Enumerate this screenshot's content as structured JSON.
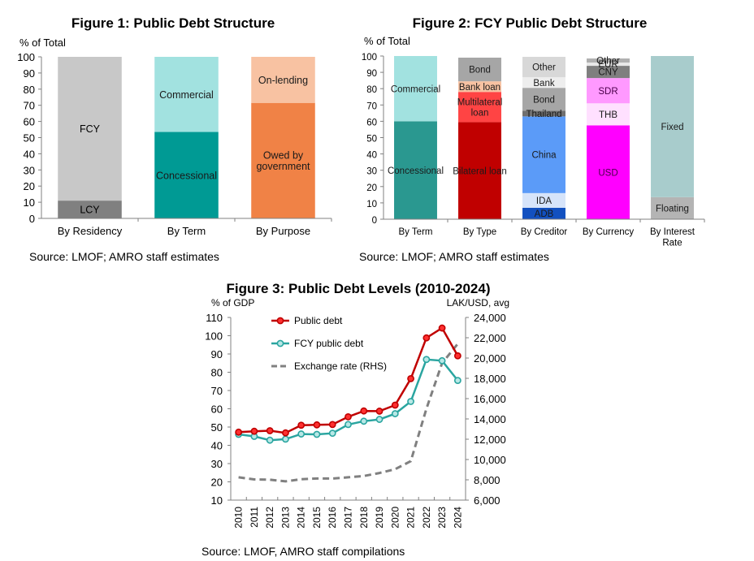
{
  "chart_data": [
    {
      "type": "bar",
      "stacked": true,
      "title": "Figure 1: Public Debt Structure",
      "ylabel": "% of Total",
      "ylim": [
        0,
        100
      ],
      "yticks": [
        "0",
        "10",
        "20",
        "30",
        "40",
        "50",
        "60",
        "70",
        "80",
        "90",
        "100"
      ],
      "source": "Source: LMOF; AMRO staff estimates",
      "bars": [
        {
          "category": "By Residency",
          "segments": [
            {
              "label": "LCY",
              "value": 11,
              "color": "#808080",
              "text_color": "#000000"
            },
            {
              "label": "FCY",
              "value": 89,
              "color": "#c8c8c8",
              "text_color": "#000000"
            }
          ]
        },
        {
          "category": "By Term",
          "segments": [
            {
              "label": "Concessional",
              "value": 53.5,
              "color": "#009a94",
              "text_color": "#1a1a1a"
            },
            {
              "label": "Commercial",
              "value": 46.5,
              "color": "#a2e2e0",
              "text_color": "#1a1a1a"
            }
          ]
        },
        {
          "category": "By Purpose",
          "segments": [
            {
              "label": "Owed by government",
              "lines": [
                "Owed by",
                "government"
              ],
              "value": 71.5,
              "color": "#f08246",
              "text_color": "#1a1a1a"
            },
            {
              "label": "On-lending",
              "value": 28.5,
              "color": "#f8c2a2",
              "text_color": "#1a1a1a"
            }
          ]
        }
      ]
    },
    {
      "type": "bar",
      "stacked": true,
      "title": "Figure 2: FCY Public Debt Structure",
      "ylabel": "% of Total",
      "ylim": [
        0,
        100
      ],
      "yticks": [
        "0",
        "10",
        "20",
        "30",
        "40",
        "50",
        "60",
        "70",
        "80",
        "90",
        "100"
      ],
      "source": "Source: LMOF; AMRO staff estimates",
      "bars": [
        {
          "category": "By Term",
          "segments": [
            {
              "label": "Concessional",
              "value": 60,
              "color": "#2a9890",
              "text_color": "#1a1a1a"
            },
            {
              "label": "Commercial",
              "value": 40,
              "color": "#a2e2e0",
              "text_color": "#1a1a1a"
            }
          ]
        },
        {
          "category": "By Type",
          "segments": [
            {
              "label": "Bilateral loan",
              "value": 59.5,
              "color": "#c00000",
              "text_color": "#1a1a1a"
            },
            {
              "label": "Multilateral loan",
              "lines": [
                "Multilateral",
                "loan"
              ],
              "value": 18.5,
              "color": "#ff4444",
              "text_color": "#1a1a1a"
            },
            {
              "label": "Bank loan",
              "value": 6.5,
              "color": "#f8c2a2",
              "text_color": "#1a1a1a"
            },
            {
              "label": "Bond",
              "value": 14.5,
              "color": "#a6a6a6",
              "text_color": "#1a1a1a"
            }
          ]
        },
        {
          "category": "By Creditor",
          "segments": [
            {
              "label": "ADB",
              "value": 7,
              "color": "#1250c0",
              "text_color": "#1a1a1a"
            },
            {
              "label": "IDA",
              "value": 9,
              "color": "#d6e4fa",
              "text_color": "#1a1a1a"
            },
            {
              "label": "China",
              "value": 47,
              "color": "#5b9bf8",
              "text_color": "#1a1a1a"
            },
            {
              "label": "Thailand",
              "value": 3.5,
              "color": "#707070",
              "text_color": "#1a1a1a"
            },
            {
              "label": "Bond",
              "value": 14,
              "color": "#a6a6a6",
              "text_color": "#1a1a1a"
            },
            {
              "label": "Bank",
              "value": 6.5,
              "color": "#eeeeee",
              "text_color": "#1a1a1a"
            },
            {
              "label": "Other",
              "value": 12.5,
              "color": "#d8d8d8",
              "text_color": "#1a1a1a"
            }
          ]
        },
        {
          "category": "By Currency",
          "segments": [
            {
              "label": "USD",
              "value": 57.5,
              "color": "#ff00ff",
              "text_color": "#4a004a"
            },
            {
              "label": "THB",
              "value": 13.5,
              "color": "#ffe0ff",
              "text_color": "#1a1a1a"
            },
            {
              "label": "SDR",
              "value": 15.5,
              "color": "#ff99ff",
              "text_color": "#4a004a"
            },
            {
              "label": "CNY",
              "value": 7.5,
              "color": "#7f7f7f",
              "text_color": "#1a1a1a"
            },
            {
              "label": "EUR",
              "value": 2,
              "color": "#e8e8e8",
              "text_color": "#1a1a1a"
            },
            {
              "label": "Other",
              "value": 2.5,
              "color": "#b0b0b0",
              "text_color": "#1a1a1a"
            }
          ]
        },
        {
          "category": "By Interest Rate",
          "lines": [
            "By Interest",
            "Rate"
          ],
          "segments": [
            {
              "label": "Floating",
              "value": 13.5,
              "color": "#b4b4b4",
              "text_color": "#1a1a1a"
            },
            {
              "label": "Fixed",
              "value": 86.5,
              "color": "#a8cccc",
              "text_color": "#1a1a1a"
            }
          ]
        }
      ]
    },
    {
      "type": "line",
      "title": "Figure 3: Public Debt Levels (2010-2024)",
      "ylabel": "% of GDP",
      "y2label": "LAK/USD, avg",
      "ylim": [
        10,
        110
      ],
      "y2lim": [
        6000,
        24000
      ],
      "yticks": [
        "10",
        "20",
        "30",
        "40",
        "50",
        "60",
        "70",
        "80",
        "90",
        "100",
        "110"
      ],
      "y2ticks": [
        "6,000",
        "8,000",
        "10,000",
        "12,000",
        "14,000",
        "16,000",
        "18,000",
        "20,000",
        "22,000",
        "24,000"
      ],
      "x": [
        "2010",
        "2011",
        "2012",
        "2013",
        "2014",
        "2015",
        "2016",
        "2017",
        "2018",
        "2019",
        "2020",
        "2021",
        "2022",
        "2023",
        "2024"
      ],
      "source": "Source: LMOF, AMRO staff compilations",
      "series": [
        {
          "name": "Public debt",
          "axis": "left",
          "color": "#c00000",
          "marker": "circle",
          "values": [
            47.2,
            47.7,
            48.0,
            46.8,
            51.0,
            51.2,
            51.4,
            55.6,
            58.8,
            58.7,
            62.0,
            76.5,
            98.8,
            104.2,
            89.0
          ]
        },
        {
          "name": "FCY public debt",
          "axis": "left",
          "color": "#2aa5a0",
          "marker": "circle",
          "values": [
            46.0,
            44.9,
            42.8,
            43.4,
            46.2,
            46.0,
            46.6,
            51.4,
            53.2,
            54.2,
            57.3,
            64.0,
            87.0,
            86.3,
            75.5
          ]
        },
        {
          "name": "Exchange rate (RHS)",
          "axis": "right",
          "color": "#808080",
          "dashed": true,
          "values": [
            8250,
            8040,
            8010,
            7850,
            8060,
            8130,
            8130,
            8250,
            8380,
            8670,
            9050,
            9840,
            15000,
            19500,
            21400
          ]
        }
      ]
    }
  ]
}
